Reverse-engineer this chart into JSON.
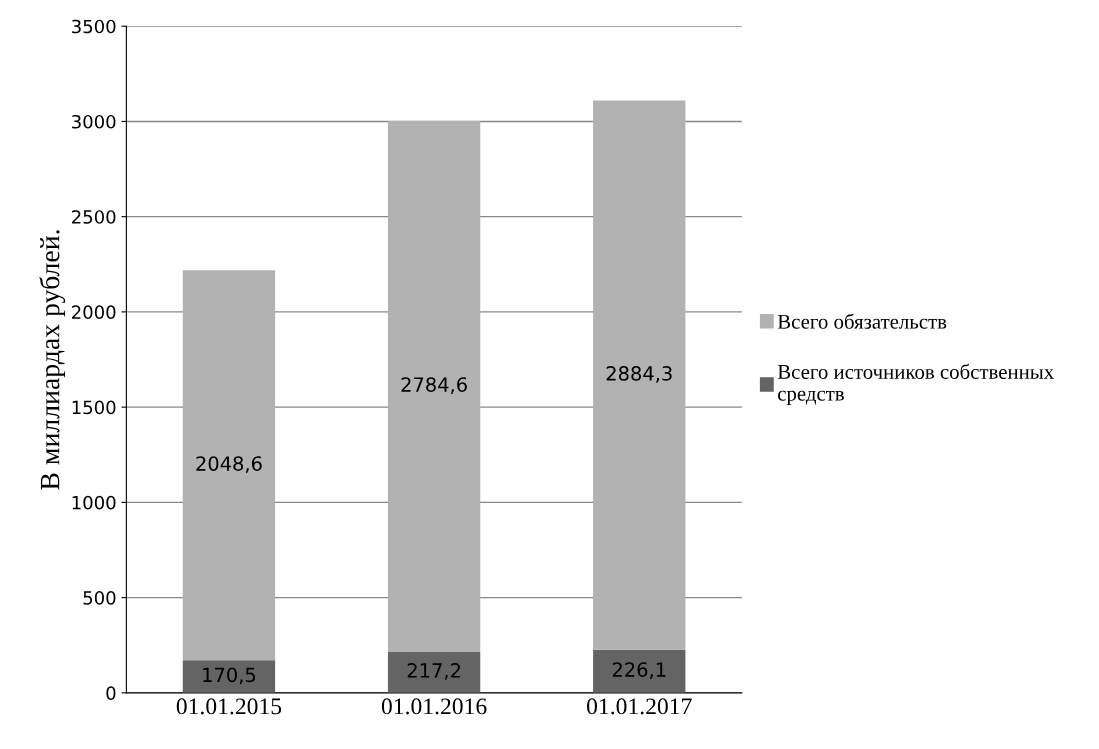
{
  "chart_data": {
    "type": "bar",
    "stacked": true,
    "ylabel": "В миллиардах рублей.",
    "categories": [
      "01.01.2015",
      "01.01.2016",
      "01.01.2017"
    ],
    "series": [
      {
        "name": "Всего источников собственных средств",
        "color": "#646464",
        "values": [
          170.5,
          217.2,
          226.1
        ],
        "value_labels": [
          "170,5",
          "217,2",
          "226,1"
        ]
      },
      {
        "name": "Всего обязательств",
        "color": "#b2b2b2",
        "values": [
          2048.6,
          2784.6,
          2884.3
        ],
        "value_labels": [
          "2048,6",
          "2784,6",
          "2884,3"
        ]
      }
    ],
    "ylim": [
      0,
      3500
    ],
    "yticks": [
      0,
      500,
      1000,
      1500,
      2000,
      2500,
      3000,
      3500
    ],
    "grid": "y",
    "legend": "right"
  }
}
